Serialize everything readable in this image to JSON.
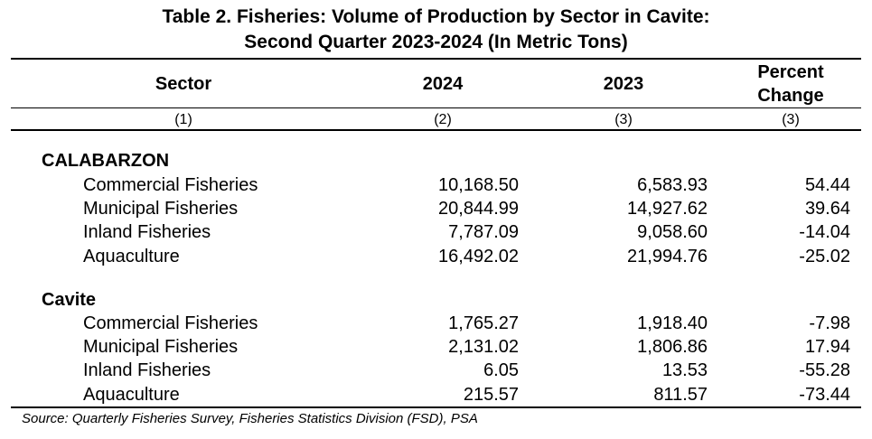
{
  "title": {
    "line1": "Table 2. Fisheries: Volume of Production by Sector in Cavite:",
    "line2": "Second Quarter 2023-2024 (In Metric Tons)"
  },
  "headers": {
    "sector": "Sector",
    "y2024": "2024",
    "y2023": "2023",
    "pct_line1": "Percent",
    "pct_line2": "Change"
  },
  "colnums": [
    "(1)",
    "(2)",
    "(3)",
    "(3)"
  ],
  "groups": [
    {
      "name": "CALABARZON",
      "rows": [
        {
          "sector": "Commercial Fisheries",
          "y2024": "10,168.50",
          "y2023": "6,583.93",
          "pct": "54.44"
        },
        {
          "sector": "Municipal Fisheries",
          "y2024": "20,844.99",
          "y2023": "14,927.62",
          "pct": "39.64"
        },
        {
          "sector": "Inland Fisheries",
          "y2024": "7,787.09",
          "y2023": "9,058.60",
          "pct": "-14.04"
        },
        {
          "sector": "Aquaculture",
          "y2024": "16,492.02",
          "y2023": "21,994.76",
          "pct": "-25.02"
        }
      ]
    },
    {
      "name": "Cavite",
      "rows": [
        {
          "sector": "Commercial Fisheries",
          "y2024": "1,765.27",
          "y2023": "1,918.40",
          "pct": "-7.98"
        },
        {
          "sector": "Municipal Fisheries",
          "y2024": "2,131.02",
          "y2023": "1,806.86",
          "pct": "17.94"
        },
        {
          "sector": "Inland Fisheries",
          "y2024": "6.05",
          "y2023": "13.53",
          "pct": "-55.28"
        },
        {
          "sector": "Aquaculture",
          "y2024": "215.57",
          "y2023": "811.57",
          "pct": "-73.44"
        }
      ]
    }
  ],
  "source": "Source: Quarterly Fisheries Survey, Fisheries Statistics Division (FSD), PSA"
}
